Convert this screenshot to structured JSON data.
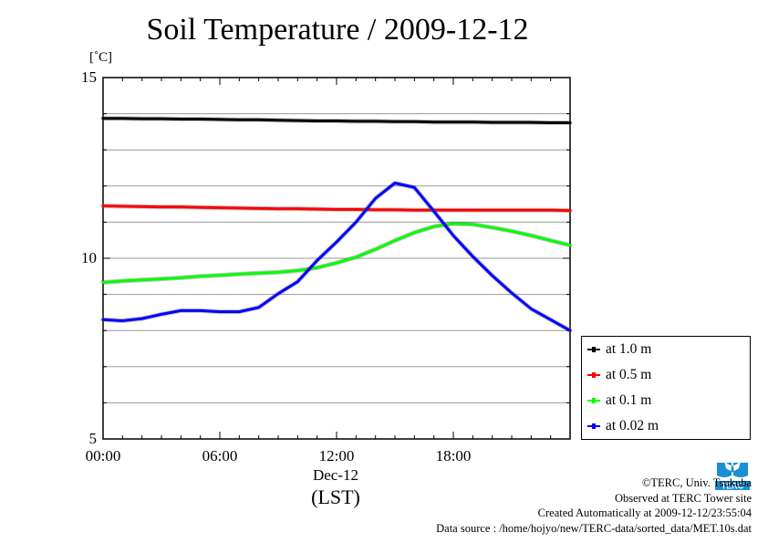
{
  "title": "Soil Temperature / 2009-12-12",
  "unit_label": "[˚C]",
  "x_axis": {
    "date_label": "Dec-12",
    "tz_label": "(LST)"
  },
  "credits": {
    "line1": "©TERC, Univ. Tsukuba",
    "line2": "Observed at TERC Tower site",
    "line3": "Created Automatically at 2009-12-12/23:55:04",
    "line4": "Data source : /home/hojyo/new/TERC-data/sorted_data/MET.10s.dat"
  },
  "logo": {
    "icon": "terc-logo-icon",
    "text": "TERC",
    "color": "#1a8fd6"
  },
  "chart_data": {
    "type": "line",
    "title": "Soil Temperature / 2009-12-12",
    "xlabel": "Dec-12 (LST)",
    "ylabel": "[˚C]",
    "xlim": [
      0,
      24
    ],
    "ylim": [
      5,
      15
    ],
    "x_ticks": [
      "00:00",
      "06:00",
      "12:00",
      "18:00"
    ],
    "x_tick_values": [
      0,
      6,
      12,
      18
    ],
    "y_ticks": [
      "5",
      "10",
      "15"
    ],
    "y_tick_values": [
      5,
      10,
      15
    ],
    "grid": true,
    "legend_position": "bottom-right-outside",
    "x": [
      0,
      1,
      2,
      3,
      4,
      5,
      6,
      7,
      8,
      9,
      10,
      11,
      12,
      13,
      14,
      15,
      16,
      17,
      18,
      19,
      20,
      21,
      22,
      23,
      24
    ],
    "series": [
      {
        "name": "at 1.0 m",
        "color": "#000000",
        "values": [
          13.87,
          13.87,
          13.86,
          13.86,
          13.85,
          13.85,
          13.84,
          13.83,
          13.83,
          13.82,
          13.81,
          13.8,
          13.8,
          13.79,
          13.79,
          13.78,
          13.78,
          13.77,
          13.77,
          13.77,
          13.76,
          13.76,
          13.76,
          13.75,
          13.75
        ]
      },
      {
        "name": "at 0.5 m",
        "color": "#ff0000",
        "values": [
          11.45,
          11.44,
          11.43,
          11.42,
          11.42,
          11.41,
          11.4,
          11.39,
          11.38,
          11.37,
          11.37,
          11.36,
          11.35,
          11.35,
          11.34,
          11.34,
          11.33,
          11.33,
          11.33,
          11.33,
          11.33,
          11.33,
          11.33,
          11.33,
          11.32
        ]
      },
      {
        "name": "at 0.1 m",
        "color": "#00ff00",
        "values": [
          9.33,
          9.37,
          9.4,
          9.43,
          9.46,
          9.5,
          9.53,
          9.56,
          9.59,
          9.61,
          9.66,
          9.74,
          9.87,
          10.03,
          10.25,
          10.49,
          10.71,
          10.88,
          10.96,
          10.94,
          10.85,
          10.75,
          10.63,
          10.49,
          10.36
        ]
      },
      {
        "name": "at 0.02 m",
        "color": "#0000ff",
        "values": [
          8.3,
          8.27,
          8.33,
          8.45,
          8.55,
          8.55,
          8.52,
          8.52,
          8.64,
          9.02,
          9.35,
          9.94,
          10.45,
          11.0,
          11.66,
          12.08,
          11.96,
          11.3,
          10.63,
          10.05,
          9.52,
          9.04,
          8.6,
          8.3,
          8.0
        ]
      }
    ]
  }
}
